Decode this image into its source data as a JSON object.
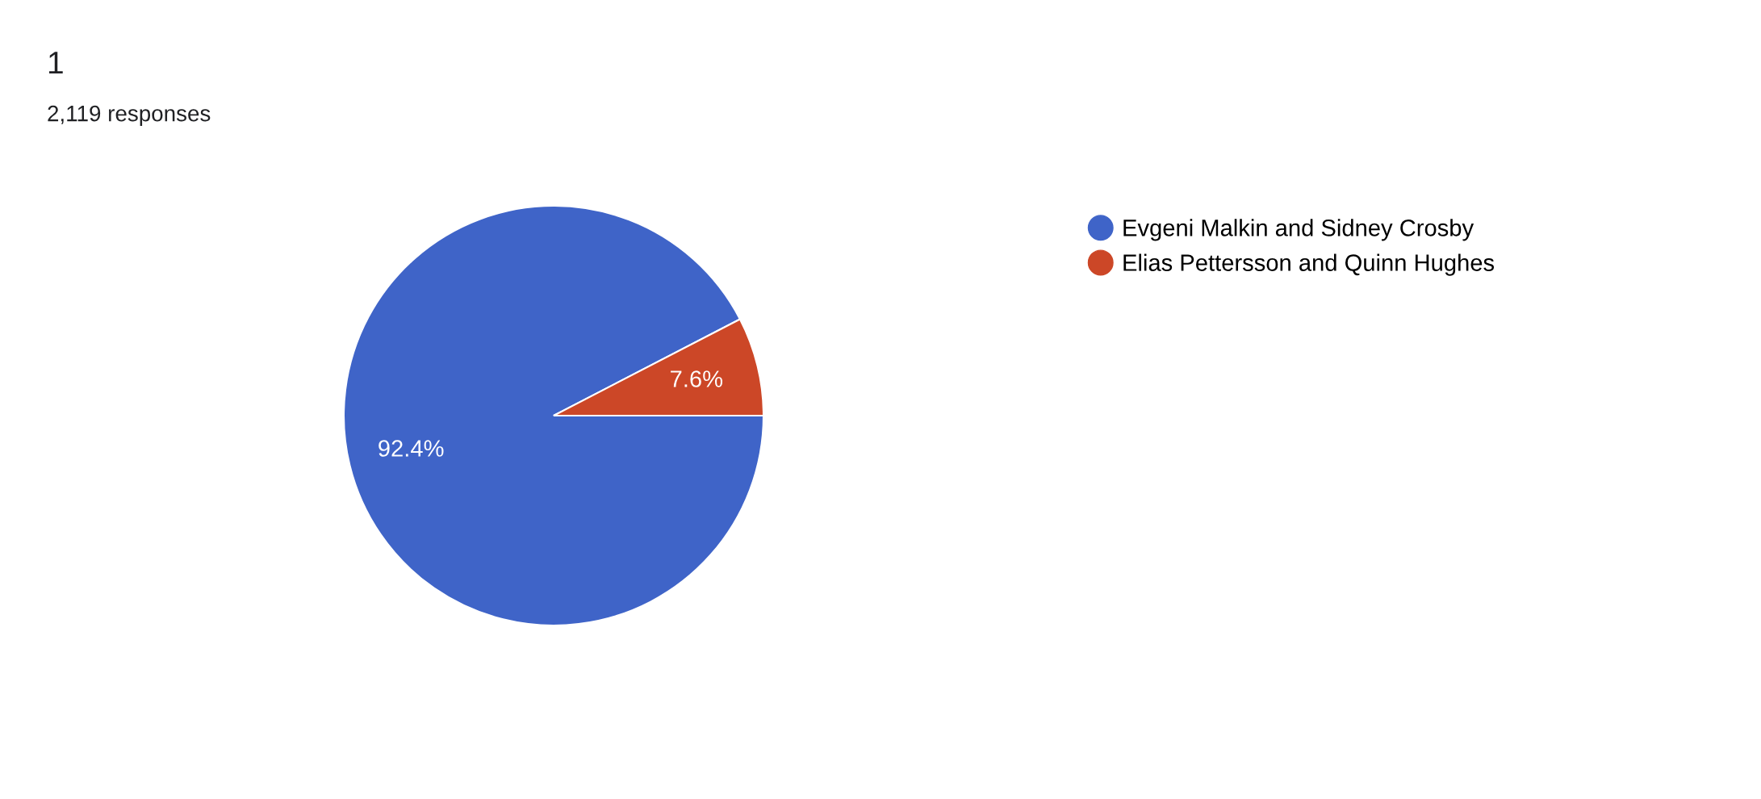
{
  "chart_data": {
    "type": "pie",
    "title": "1",
    "subtitle": "2,119 responses",
    "categories": [
      "Evgeni Malkin and Sidney Crosby",
      "Elias Pettersson and Quinn Hughes"
    ],
    "values": [
      92.4,
      7.6
    ],
    "colors": [
      "#3f64c8",
      "#cc4727"
    ],
    "value_labels": [
      "92.4%",
      "7.6%"
    ],
    "legend": "right"
  }
}
